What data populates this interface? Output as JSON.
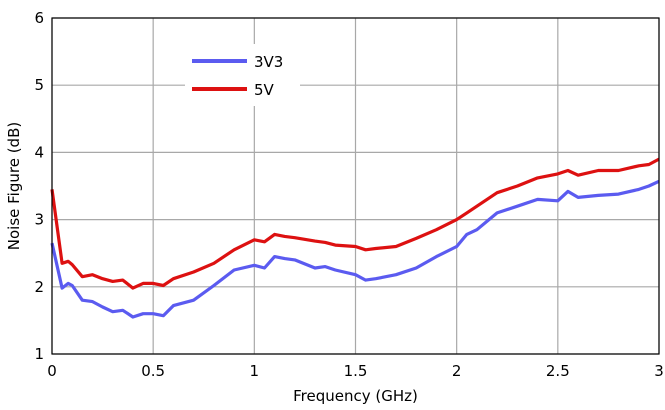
{
  "chart_data": {
    "type": "line",
    "title": "",
    "xlabel": "Frequency (GHz)",
    "ylabel": "Noise Figure (dB)",
    "xlim": [
      0,
      3
    ],
    "ylim": [
      1,
      6
    ],
    "x_ticks": [
      "0",
      "0.5",
      "1",
      "1.5",
      "2",
      "2.5",
      "3"
    ],
    "y_ticks": [
      "1",
      "2",
      "3",
      "4",
      "5",
      "6"
    ],
    "grid": true,
    "legend_position": "top-left",
    "series": [
      {
        "name": "3V3",
        "color": "#5b5bf0",
        "x": [
          0,
          0.05,
          0.08,
          0.1,
          0.15,
          0.2,
          0.25,
          0.3,
          0.35,
          0.4,
          0.45,
          0.5,
          0.55,
          0.6,
          0.7,
          0.8,
          0.9,
          1.0,
          1.05,
          1.1,
          1.15,
          1.2,
          1.3,
          1.35,
          1.4,
          1.5,
          1.55,
          1.6,
          1.7,
          1.8,
          1.9,
          2.0,
          2.05,
          2.1,
          2.2,
          2.3,
          2.4,
          2.5,
          2.55,
          2.6,
          2.7,
          2.8,
          2.9,
          2.95,
          3.0
        ],
        "y": [
          2.65,
          1.98,
          2.05,
          2.02,
          1.8,
          1.78,
          1.7,
          1.63,
          1.65,
          1.55,
          1.6,
          1.6,
          1.57,
          1.72,
          1.8,
          2.02,
          2.25,
          2.32,
          2.28,
          2.45,
          2.42,
          2.4,
          2.28,
          2.3,
          2.25,
          2.18,
          2.1,
          2.12,
          2.18,
          2.28,
          2.45,
          2.6,
          2.78,
          2.85,
          3.1,
          3.2,
          3.3,
          3.28,
          3.42,
          3.33,
          3.36,
          3.38,
          3.45,
          3.5,
          3.57
        ]
      },
      {
        "name": "5V",
        "color": "#dd1111",
        "x": [
          0,
          0.05,
          0.08,
          0.1,
          0.15,
          0.2,
          0.25,
          0.3,
          0.35,
          0.4,
          0.45,
          0.5,
          0.55,
          0.6,
          0.7,
          0.8,
          0.9,
          1.0,
          1.05,
          1.1,
          1.15,
          1.2,
          1.3,
          1.35,
          1.4,
          1.5,
          1.55,
          1.6,
          1.7,
          1.8,
          1.9,
          2.0,
          2.05,
          2.1,
          2.2,
          2.3,
          2.4,
          2.5,
          2.55,
          2.6,
          2.7,
          2.8,
          2.9,
          2.95,
          3.0
        ],
        "y": [
          3.45,
          2.35,
          2.38,
          2.33,
          2.15,
          2.18,
          2.12,
          2.08,
          2.1,
          1.98,
          2.05,
          2.05,
          2.02,
          2.12,
          2.22,
          2.35,
          2.55,
          2.7,
          2.67,
          2.78,
          2.75,
          2.73,
          2.68,
          2.66,
          2.62,
          2.6,
          2.55,
          2.57,
          2.6,
          2.72,
          2.85,
          3.0,
          3.1,
          3.2,
          3.4,
          3.5,
          3.62,
          3.68,
          3.73,
          3.66,
          3.73,
          3.73,
          3.8,
          3.82,
          3.9
        ]
      }
    ]
  }
}
